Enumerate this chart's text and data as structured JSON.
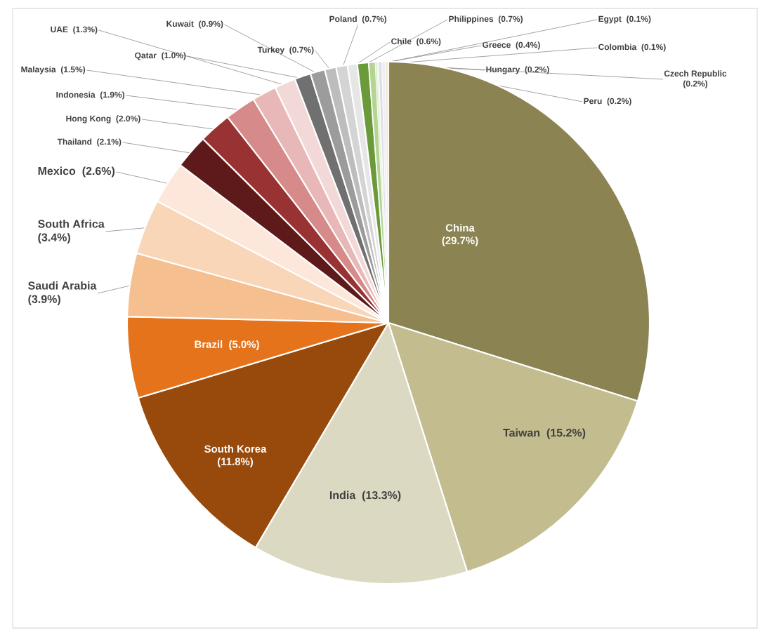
{
  "chart_data": {
    "type": "pie",
    "categories": [
      "China",
      "Taiwan",
      "India",
      "South Korea",
      "Brazil",
      "Saudi Arabia",
      "South Africa",
      "Mexico",
      "Thailand",
      "Hong Kong",
      "Indonesia",
      "Malaysia",
      "UAE",
      "Qatar",
      "Kuwait",
      "Turkey",
      "Poland",
      "Chile",
      "Philippines",
      "Greece",
      "Egypt",
      "Colombia",
      "Hungary",
      "Czech Republic",
      "Peru"
    ],
    "values": [
      29.7,
      15.2,
      13.3,
      11.8,
      5.0,
      3.9,
      3.4,
      2.6,
      2.1,
      2.0,
      1.9,
      1.5,
      1.3,
      1.0,
      0.9,
      0.7,
      0.7,
      0.6,
      0.7,
      0.4,
      0.1,
      0.1,
      0.2,
      0.2,
      0.2
    ],
    "value_labels": [
      "(29.7%)",
      "(15.2%)",
      "(13.3%)",
      "(11.8%)",
      "(5.0%)",
      "(3.9%)",
      "(3.4%)",
      "(2.6%)",
      "(2.1%)",
      "(2.0%)",
      "(1.9%)",
      "(1.5%)",
      "(1.3%)",
      "(1.0%)",
      "(0.9%)",
      "(0.7%)",
      "(0.7%)",
      "(0.6%)",
      "(0.7%)",
      "(0.4%)",
      "(0.1%)",
      "(0.1%)",
      "(0.2%)",
      "(0.2%)",
      "(0.2%)"
    ],
    "colors": [
      "#8b8352",
      "#c2bc8e",
      "#dcd9c2",
      "#974a0c",
      "#e4731b",
      "#f5bf8f",
      "#f9d6b8",
      "#fce7da",
      "#5e1a1a",
      "#993232",
      "#d68a8a",
      "#e8b8b8",
      "#f3d8d8",
      "#707070",
      "#9c9c9c",
      "#bdbdbd",
      "#d4d4d4",
      "#e6e6e6",
      "#6b9a3a",
      "#b4d494",
      "#d8ecc4",
      "#eef6e6",
      "#dedee8",
      "#eeeef4",
      "#f6ead8"
    ]
  }
}
